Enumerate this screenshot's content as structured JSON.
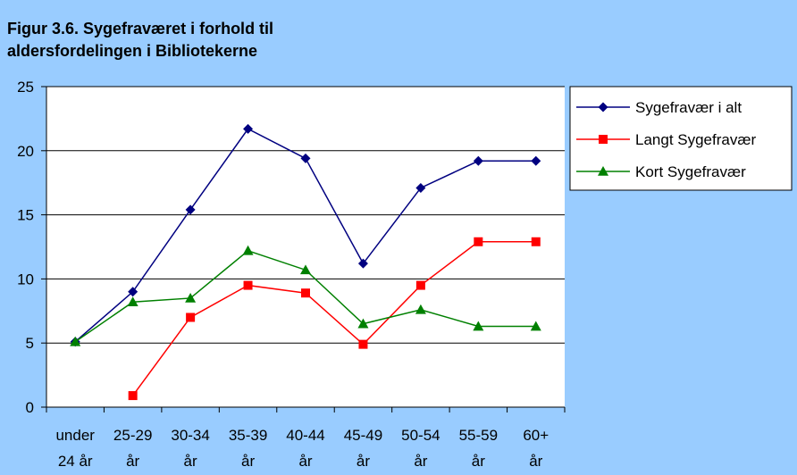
{
  "colors": {
    "background": "#99ccff",
    "plot_area": "#ffffff",
    "legend_bg": "#ffffff"
  },
  "chart_data": {
    "type": "line",
    "title_lines": [
      "Figur 3.6. Sygefraværet i forhold til",
      "aldersfordelingen i Bibliotekerne"
    ],
    "categories": [
      [
        "under",
        "24 år"
      ],
      [
        "25-29",
        "år"
      ],
      [
        "30-34",
        "år"
      ],
      [
        "35-39",
        "år"
      ],
      [
        "40-44",
        "år"
      ],
      [
        "45-49",
        "år"
      ],
      [
        "50-54",
        "år"
      ],
      [
        "55-59",
        "år"
      ],
      [
        "60+",
        "år"
      ]
    ],
    "ylim": [
      0,
      25
    ],
    "yticks": [
      "0",
      "5",
      "10",
      "15",
      "20",
      "25"
    ],
    "grid": true,
    "legend_position": "right",
    "series": [
      {
        "name": "Sygefravær i alt",
        "color": "#000080",
        "marker": "diamond",
        "values": [
          5.1,
          9.0,
          15.4,
          21.7,
          19.4,
          11.2,
          17.1,
          19.2,
          19.2
        ]
      },
      {
        "name": "Langt Sygefravær",
        "color": "#ff0000",
        "marker": "square",
        "values": [
          null,
          0.9,
          7.0,
          9.5,
          8.9,
          4.9,
          9.5,
          12.9,
          12.9
        ]
      },
      {
        "name": "Kort Sygefravær",
        "color": "#008000",
        "marker": "triangle",
        "values": [
          5.1,
          8.2,
          8.5,
          12.2,
          10.7,
          6.5,
          7.6,
          6.3,
          6.3
        ]
      }
    ]
  }
}
